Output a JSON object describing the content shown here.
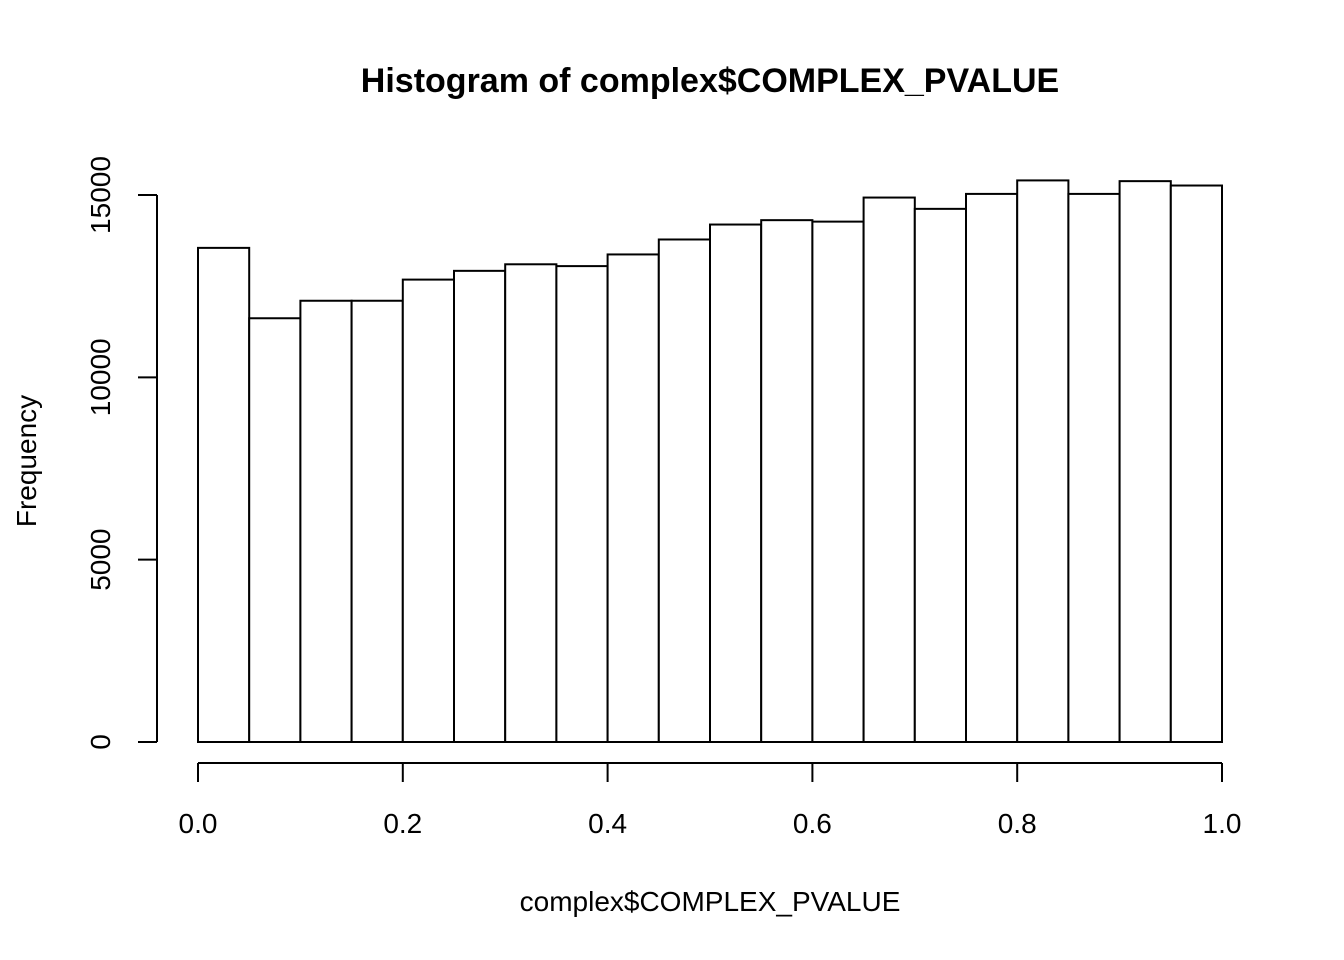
{
  "chart_data": {
    "type": "bar",
    "title": "Histogram of complex$COMPLEX_PVALUE",
    "xlabel": "complex$COMPLEX_PVALUE",
    "ylabel": "Frequency",
    "xlim": [
      0.0,
      1.0
    ],
    "ylim": [
      0,
      15000
    ],
    "x_ticks": [
      "0.0",
      "0.2",
      "0.4",
      "0.6",
      "0.8",
      "1.0"
    ],
    "y_ticks": [
      "0",
      "5000",
      "10000",
      "15000"
    ],
    "bin_width": 0.05,
    "bins": [
      {
        "start": 0.0,
        "end": 0.05,
        "count": 13550
      },
      {
        "start": 0.05,
        "end": 0.1,
        "count": 11620
      },
      {
        "start": 0.1,
        "end": 0.15,
        "count": 12100
      },
      {
        "start": 0.15,
        "end": 0.2,
        "count": 12100
      },
      {
        "start": 0.2,
        "end": 0.25,
        "count": 12680
      },
      {
        "start": 0.25,
        "end": 0.3,
        "count": 12920
      },
      {
        "start": 0.3,
        "end": 0.35,
        "count": 13100
      },
      {
        "start": 0.35,
        "end": 0.4,
        "count": 13050
      },
      {
        "start": 0.4,
        "end": 0.45,
        "count": 13370
      },
      {
        "start": 0.45,
        "end": 0.5,
        "count": 13780
      },
      {
        "start": 0.5,
        "end": 0.55,
        "count": 14190
      },
      {
        "start": 0.55,
        "end": 0.6,
        "count": 14310
      },
      {
        "start": 0.6,
        "end": 0.65,
        "count": 14270
      },
      {
        "start": 0.65,
        "end": 0.7,
        "count": 14930
      },
      {
        "start": 0.7,
        "end": 0.75,
        "count": 14620
      },
      {
        "start": 0.75,
        "end": 0.8,
        "count": 15030
      },
      {
        "start": 0.8,
        "end": 0.85,
        "count": 15400
      },
      {
        "start": 0.85,
        "end": 0.9,
        "count": 15030
      },
      {
        "start": 0.9,
        "end": 0.95,
        "count": 15380
      },
      {
        "start": 0.95,
        "end": 1.0,
        "count": 15260
      }
    ],
    "grid": false
  }
}
